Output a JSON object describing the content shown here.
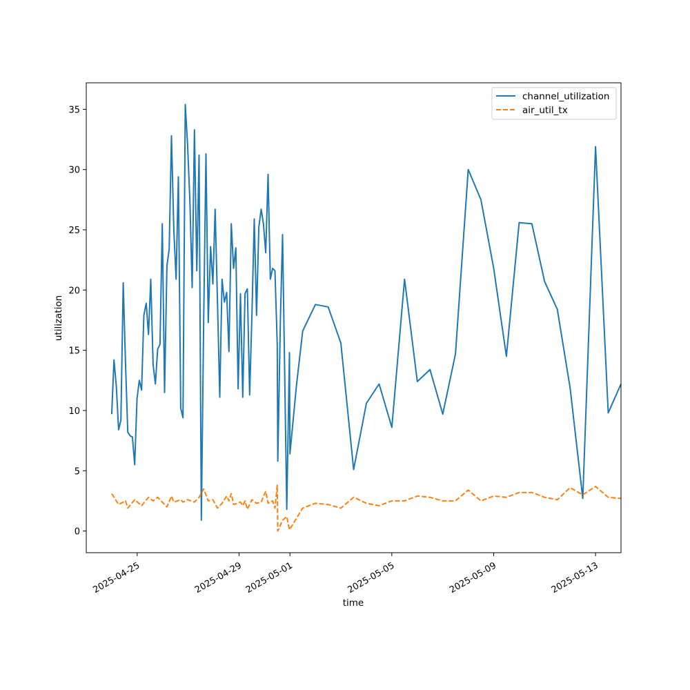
{
  "chart_data": {
    "type": "line",
    "xlabel": "time",
    "ylabel": "utilization",
    "xlim": [
      "2025-04-23T00:00",
      "2025-05-14T00:00"
    ],
    "ylim": [
      -1.8,
      37.2
    ],
    "x_ticks": [
      "2025-04-25",
      "2025-04-29",
      "2025-05-01",
      "2025-05-05",
      "2025-05-09",
      "2025-05-13"
    ],
    "y_ticks": [
      0,
      5,
      10,
      15,
      20,
      25,
      30,
      35
    ],
    "legend_position": "top-right",
    "series": [
      {
        "name": "channel_utilization",
        "color": "#1f77b4",
        "style": "solid",
        "points": [
          [
            "2025-04-24T00:00",
            9.7
          ],
          [
            "2025-04-24T02:10",
            14.2
          ],
          [
            "2025-04-24T04:20",
            12.0
          ],
          [
            "2025-04-24T06:30",
            8.4
          ],
          [
            "2025-04-24T08:40",
            9.2
          ],
          [
            "2025-04-24T10:50",
            20.6
          ],
          [
            "2025-04-24T13:00",
            13.9
          ],
          [
            "2025-04-24T15:10",
            8.2
          ],
          [
            "2025-04-24T17:20",
            7.9
          ],
          [
            "2025-04-24T19:30",
            7.8
          ],
          [
            "2025-04-24T21:40",
            5.5
          ],
          [
            "2025-04-24T23:50",
            11.0
          ],
          [
            "2025-04-25T02:00",
            12.5
          ],
          [
            "2025-04-25T04:10",
            11.7
          ],
          [
            "2025-04-25T06:20",
            17.9
          ],
          [
            "2025-04-25T08:30",
            18.9
          ],
          [
            "2025-04-25T10:40",
            16.3
          ],
          [
            "2025-04-25T12:50",
            20.9
          ],
          [
            "2025-04-25T15:00",
            13.8
          ],
          [
            "2025-04-25T17:10",
            12.2
          ],
          [
            "2025-04-25T19:20",
            15.1
          ],
          [
            "2025-04-25T21:30",
            15.5
          ],
          [
            "2025-04-25T23:40",
            25.5
          ],
          [
            "2025-04-26T01:50",
            11.5
          ],
          [
            "2025-04-26T04:00",
            22.0
          ],
          [
            "2025-04-26T06:10",
            23.4
          ],
          [
            "2025-04-26T08:20",
            32.8
          ],
          [
            "2025-04-26T10:30",
            25.0
          ],
          [
            "2025-04-26T12:40",
            20.9
          ],
          [
            "2025-04-26T14:50",
            29.4
          ],
          [
            "2025-04-26T17:00",
            10.2
          ],
          [
            "2025-04-26T19:10",
            9.4
          ],
          [
            "2025-04-26T21:20",
            35.4
          ],
          [
            "2025-04-26T23:30",
            32.0
          ],
          [
            "2025-04-27T01:40",
            27.4
          ],
          [
            "2025-04-27T03:50",
            20.2
          ],
          [
            "2025-04-27T06:00",
            33.3
          ],
          [
            "2025-04-27T08:10",
            21.6
          ],
          [
            "2025-04-27T10:20",
            31.2
          ],
          [
            "2025-04-27T12:30",
            0.9
          ],
          [
            "2025-04-27T14:40",
            17.5
          ],
          [
            "2025-04-27T16:50",
            31.3
          ],
          [
            "2025-04-27T19:00",
            17.3
          ],
          [
            "2025-04-27T21:10",
            23.6
          ],
          [
            "2025-04-27T23:20",
            20.5
          ],
          [
            "2025-04-28T01:30",
            26.7
          ],
          [
            "2025-04-28T03:40",
            19.0
          ],
          [
            "2025-04-28T05:50",
            11.1
          ],
          [
            "2025-04-28T08:00",
            20.9
          ],
          [
            "2025-04-28T10:10",
            19.0
          ],
          [
            "2025-04-28T12:20",
            19.8
          ],
          [
            "2025-04-28T14:30",
            14.9
          ],
          [
            "2025-04-28T16:40",
            25.5
          ],
          [
            "2025-04-28T18:50",
            21.8
          ],
          [
            "2025-04-28T21:00",
            23.5
          ],
          [
            "2025-04-28T23:10",
            11.8
          ],
          [
            "2025-04-29T01:20",
            19.7
          ],
          [
            "2025-04-29T03:30",
            11.1
          ],
          [
            "2025-04-29T05:40",
            19.7
          ],
          [
            "2025-04-29T07:50",
            20.1
          ],
          [
            "2025-04-29T10:00",
            11.3
          ],
          [
            "2025-04-29T12:10",
            17.9
          ],
          [
            "2025-04-29T14:20",
            25.9
          ],
          [
            "2025-04-29T16:30",
            17.9
          ],
          [
            "2025-04-29T18:40",
            25.2
          ],
          [
            "2025-04-29T20:50",
            26.7
          ],
          [
            "2025-04-29T23:00",
            25.5
          ],
          [
            "2025-04-30T01:10",
            23.1
          ],
          [
            "2025-04-30T03:20",
            29.6
          ],
          [
            "2025-04-30T05:30",
            20.9
          ],
          [
            "2025-04-30T07:40",
            21.8
          ],
          [
            "2025-04-30T09:50",
            21.6
          ],
          [
            "2025-04-30T12:00",
            15.5
          ],
          [
            "2025-04-30T12:30",
            5.8
          ],
          [
            "2025-04-30T15:00",
            17.6
          ],
          [
            "2025-04-30T17:00",
            24.6
          ],
          [
            "2025-04-30T21:00",
            1.8
          ],
          [
            "2025-04-30T23:30",
            14.8
          ],
          [
            "2025-05-01T00:00",
            6.4
          ],
          [
            "2025-05-01T06:00",
            12.0
          ],
          [
            "2025-05-01T12:00",
            16.6
          ],
          [
            "2025-05-02T00:00",
            18.8
          ],
          [
            "2025-05-02T12:00",
            18.6
          ],
          [
            "2025-05-03T00:00",
            15.6
          ],
          [
            "2025-05-03T12:00",
            5.1
          ],
          [
            "2025-05-04T00:00",
            10.6
          ],
          [
            "2025-05-04T12:00",
            12.2
          ],
          [
            "2025-05-05T00:00",
            8.6
          ],
          [
            "2025-05-05T12:00",
            20.9
          ],
          [
            "2025-05-06T00:00",
            12.4
          ],
          [
            "2025-05-06T12:00",
            13.4
          ],
          [
            "2025-05-07T00:00",
            9.7
          ],
          [
            "2025-05-07T12:00",
            14.7
          ],
          [
            "2025-05-08T00:00",
            30.0
          ],
          [
            "2025-05-08T12:00",
            27.5
          ],
          [
            "2025-05-09T00:00",
            21.8
          ],
          [
            "2025-05-09T12:00",
            14.5
          ],
          [
            "2025-05-10T00:00",
            25.6
          ],
          [
            "2025-05-10T12:00",
            25.5
          ],
          [
            "2025-05-11T00:00",
            20.7
          ],
          [
            "2025-05-11T12:00",
            18.4
          ],
          [
            "2025-05-12T00:00",
            11.9
          ],
          [
            "2025-05-12T12:00",
            2.7
          ],
          [
            "2025-05-13T00:00",
            31.9
          ],
          [
            "2025-05-13T12:00",
            9.8
          ],
          [
            "2025-05-14T00:00",
            12.2
          ]
        ]
      },
      {
        "name": "air_util_tx",
        "color": "#ff7f0e",
        "style": "dashed",
        "points": [
          [
            "2025-04-24T00:00",
            3.1
          ],
          [
            "2025-04-24T06:30",
            2.2
          ],
          [
            "2025-04-24T13:00",
            2.5
          ],
          [
            "2025-04-24T15:10",
            1.9
          ],
          [
            "2025-04-24T21:40",
            2.6
          ],
          [
            "2025-04-25T04:10",
            2.1
          ],
          [
            "2025-04-25T10:40",
            2.8
          ],
          [
            "2025-04-25T15:00",
            2.5
          ],
          [
            "2025-04-25T19:20",
            2.8
          ],
          [
            "2025-04-26T01:50",
            2.2
          ],
          [
            "2025-04-26T04:00",
            2.0
          ],
          [
            "2025-04-26T08:20",
            2.9
          ],
          [
            "2025-04-26T10:30",
            2.4
          ],
          [
            "2025-04-26T17:00",
            2.6
          ],
          [
            "2025-04-26T19:10",
            2.4
          ],
          [
            "2025-04-26T23:30",
            2.6
          ],
          [
            "2025-04-27T06:00",
            2.4
          ],
          [
            "2025-04-27T10:20",
            2.8
          ],
          [
            "2025-04-27T14:40",
            3.5
          ],
          [
            "2025-04-27T19:00",
            2.5
          ],
          [
            "2025-04-27T23:20",
            2.6
          ],
          [
            "2025-04-28T03:40",
            1.9
          ],
          [
            "2025-04-28T08:00",
            2.3
          ],
          [
            "2025-04-28T12:20",
            2.9
          ],
          [
            "2025-04-28T14:30",
            2.5
          ],
          [
            "2025-04-28T16:40",
            3.1
          ],
          [
            "2025-04-28T18:50",
            2.2
          ],
          [
            "2025-04-29T01:20",
            2.4
          ],
          [
            "2025-04-29T03:30",
            2.1
          ],
          [
            "2025-04-29T05:40",
            2.5
          ],
          [
            "2025-04-29T07:50",
            1.8
          ],
          [
            "2025-04-29T12:10",
            2.6
          ],
          [
            "2025-04-29T16:30",
            2.3
          ],
          [
            "2025-04-29T20:50",
            2.4
          ],
          [
            "2025-04-30T01:10",
            3.3
          ],
          [
            "2025-04-30T03:20",
            2.3
          ],
          [
            "2025-04-30T07:40",
            2.5
          ],
          [
            "2025-04-30T09:50",
            1.9
          ],
          [
            "2025-04-30T12:00",
            3.8
          ],
          [
            "2025-04-30T12:30",
            0.0
          ],
          [
            "2025-04-30T17:00",
            0.9
          ],
          [
            "2025-04-30T21:00",
            1.2
          ],
          [
            "2025-04-30T23:30",
            0.1
          ],
          [
            "2025-05-01T12:00",
            1.9
          ],
          [
            "2025-05-02T00:00",
            2.3
          ],
          [
            "2025-05-02T12:00",
            2.2
          ],
          [
            "2025-05-03T00:00",
            1.9
          ],
          [
            "2025-05-03T12:00",
            2.8
          ],
          [
            "2025-05-04T00:00",
            2.3
          ],
          [
            "2025-05-04T12:00",
            2.1
          ],
          [
            "2025-05-05T00:00",
            2.5
          ],
          [
            "2025-05-05T12:00",
            2.5
          ],
          [
            "2025-05-06T00:00",
            2.9
          ],
          [
            "2025-05-06T12:00",
            2.8
          ],
          [
            "2025-05-07T00:00",
            2.5
          ],
          [
            "2025-05-07T12:00",
            2.5
          ],
          [
            "2025-05-08T00:00",
            3.4
          ],
          [
            "2025-05-08T12:00",
            2.5
          ],
          [
            "2025-05-09T00:00",
            2.9
          ],
          [
            "2025-05-09T12:00",
            2.8
          ],
          [
            "2025-05-10T00:00",
            3.2
          ],
          [
            "2025-05-10T12:00",
            3.2
          ],
          [
            "2025-05-11T00:00",
            2.8
          ],
          [
            "2025-05-11T12:00",
            2.6
          ],
          [
            "2025-05-12T00:00",
            3.6
          ],
          [
            "2025-05-12T12:00",
            3.0
          ],
          [
            "2025-05-13T00:00",
            3.7
          ],
          [
            "2025-05-13T12:00",
            2.8
          ],
          [
            "2025-05-14T00:00",
            2.7
          ]
        ]
      }
    ]
  }
}
